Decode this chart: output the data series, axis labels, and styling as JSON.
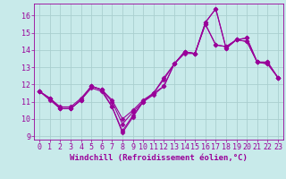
{
  "x": [
    0,
    1,
    2,
    3,
    4,
    5,
    6,
    7,
    8,
    9,
    10,
    11,
    12,
    13,
    14,
    15,
    16,
    17,
    18,
    19,
    20,
    21,
    22,
    23
  ],
  "series": [
    [
      11.6,
      11.2,
      10.6,
      10.6,
      11.1,
      11.9,
      11.7,
      10.7,
      9.2,
      10.1,
      11.0,
      11.5,
      11.9,
      13.2,
      13.9,
      13.8,
      15.6,
      16.4,
      14.1,
      14.6,
      14.7,
      13.3,
      13.3,
      12.4
    ],
    [
      11.6,
      11.2,
      10.6,
      10.6,
      11.1,
      11.9,
      11.7,
      11.0,
      9.7,
      10.4,
      11.0,
      11.5,
      12.3,
      13.2,
      13.8,
      13.8,
      15.5,
      14.3,
      14.2,
      14.6,
      14.5,
      13.3,
      13.2,
      12.4
    ],
    [
      11.6,
      11.2,
      10.7,
      10.7,
      11.2,
      11.9,
      11.7,
      11.1,
      10.0,
      10.5,
      11.1,
      11.5,
      12.4,
      13.2,
      13.9,
      13.8,
      15.5,
      14.3,
      14.2,
      14.6,
      14.5,
      13.3,
      13.2,
      12.4
    ],
    [
      11.6,
      11.1,
      10.6,
      10.6,
      11.1,
      11.8,
      11.6,
      10.7,
      9.3,
      10.2,
      11.0,
      11.4,
      11.9,
      13.2,
      13.9,
      13.8,
      15.6,
      16.4,
      14.1,
      14.6,
      14.7,
      13.3,
      13.3,
      12.4
    ]
  ],
  "color": "#990099",
  "bg_color": "#c8eaea",
  "xlabel": "Windchill (Refroidissement éolien,°C)",
  "ylim": [
    8.8,
    16.7
  ],
  "xlim": [
    -0.5,
    23.5
  ],
  "yticks": [
    9,
    10,
    11,
    12,
    13,
    14,
    15,
    16
  ],
  "xticks": [
    0,
    1,
    2,
    3,
    4,
    5,
    6,
    7,
    8,
    9,
    10,
    11,
    12,
    13,
    14,
    15,
    16,
    17,
    18,
    19,
    20,
    21,
    22,
    23
  ],
  "grid_color": "#aacfcf",
  "marker": "D",
  "markersize": 2.5,
  "linewidth": 0.8,
  "xlabel_fontsize": 6.5,
  "tick_fontsize": 6.0
}
